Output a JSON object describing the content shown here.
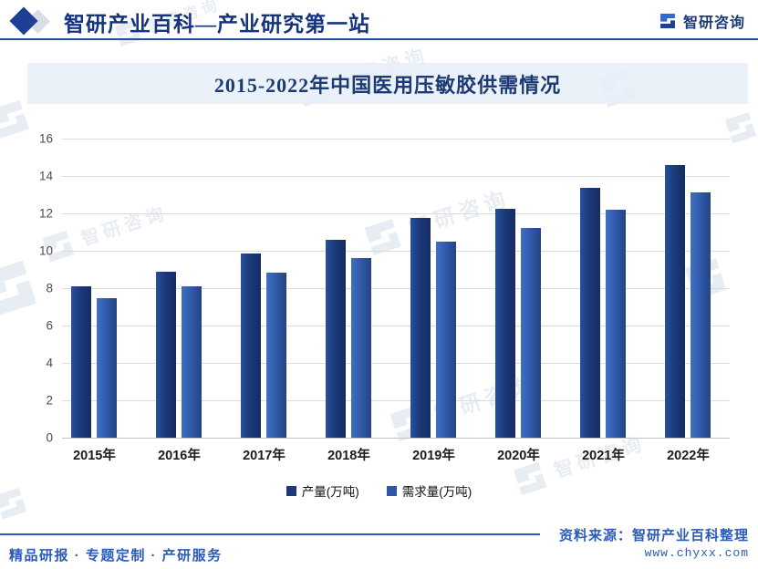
{
  "header": {
    "brand_title": "智研产业百科—产业研究第一站",
    "logo_text": "智研咨询"
  },
  "icons": {
    "brand_diamond": "diamond-shape",
    "logo_mark": "zhiyan-interlocked-mark"
  },
  "title_band": {
    "title": "2015-2022年中国医用压敏胶供需情况"
  },
  "chart_data": {
    "type": "bar",
    "title": "2015-2022年中国医用压敏胶供需情况",
    "categories": [
      "2015年",
      "2016年",
      "2017年",
      "2018年",
      "2019年",
      "2020年",
      "2021年",
      "2022年"
    ],
    "series": [
      {
        "name": "产量(万吨)",
        "color": "#1b3a7a",
        "values": [
          8.1,
          8.9,
          9.85,
          10.6,
          11.75,
          12.25,
          13.35,
          14.6
        ]
      },
      {
        "name": "需求量(万吨)",
        "color": "#2e57a8",
        "values": [
          7.45,
          8.1,
          8.85,
          9.6,
          10.5,
          11.2,
          12.2,
          13.1
        ]
      }
    ],
    "xlabel": "",
    "ylabel": "",
    "ylim": [
      0,
      16
    ],
    "ytick_step": 2,
    "grid": true,
    "legend_position": "bottom"
  },
  "watermark": {
    "text": "智研咨询"
  },
  "footer": {
    "left_text": "精品研报 · 专题定制 · 产研服务",
    "source_line": "资料来源：智研产业百科整理",
    "source_url": "www.chyxx.com"
  },
  "colors": {
    "brand_dark": "#15337e",
    "header_divider": "#24509e",
    "title_band_bg": "#e7eff8",
    "grid": "#dcdcdc",
    "footer_blue": "#2d5cb8",
    "bar_production": "#1b3a7a",
    "bar_demand": "#2e57a8"
  }
}
